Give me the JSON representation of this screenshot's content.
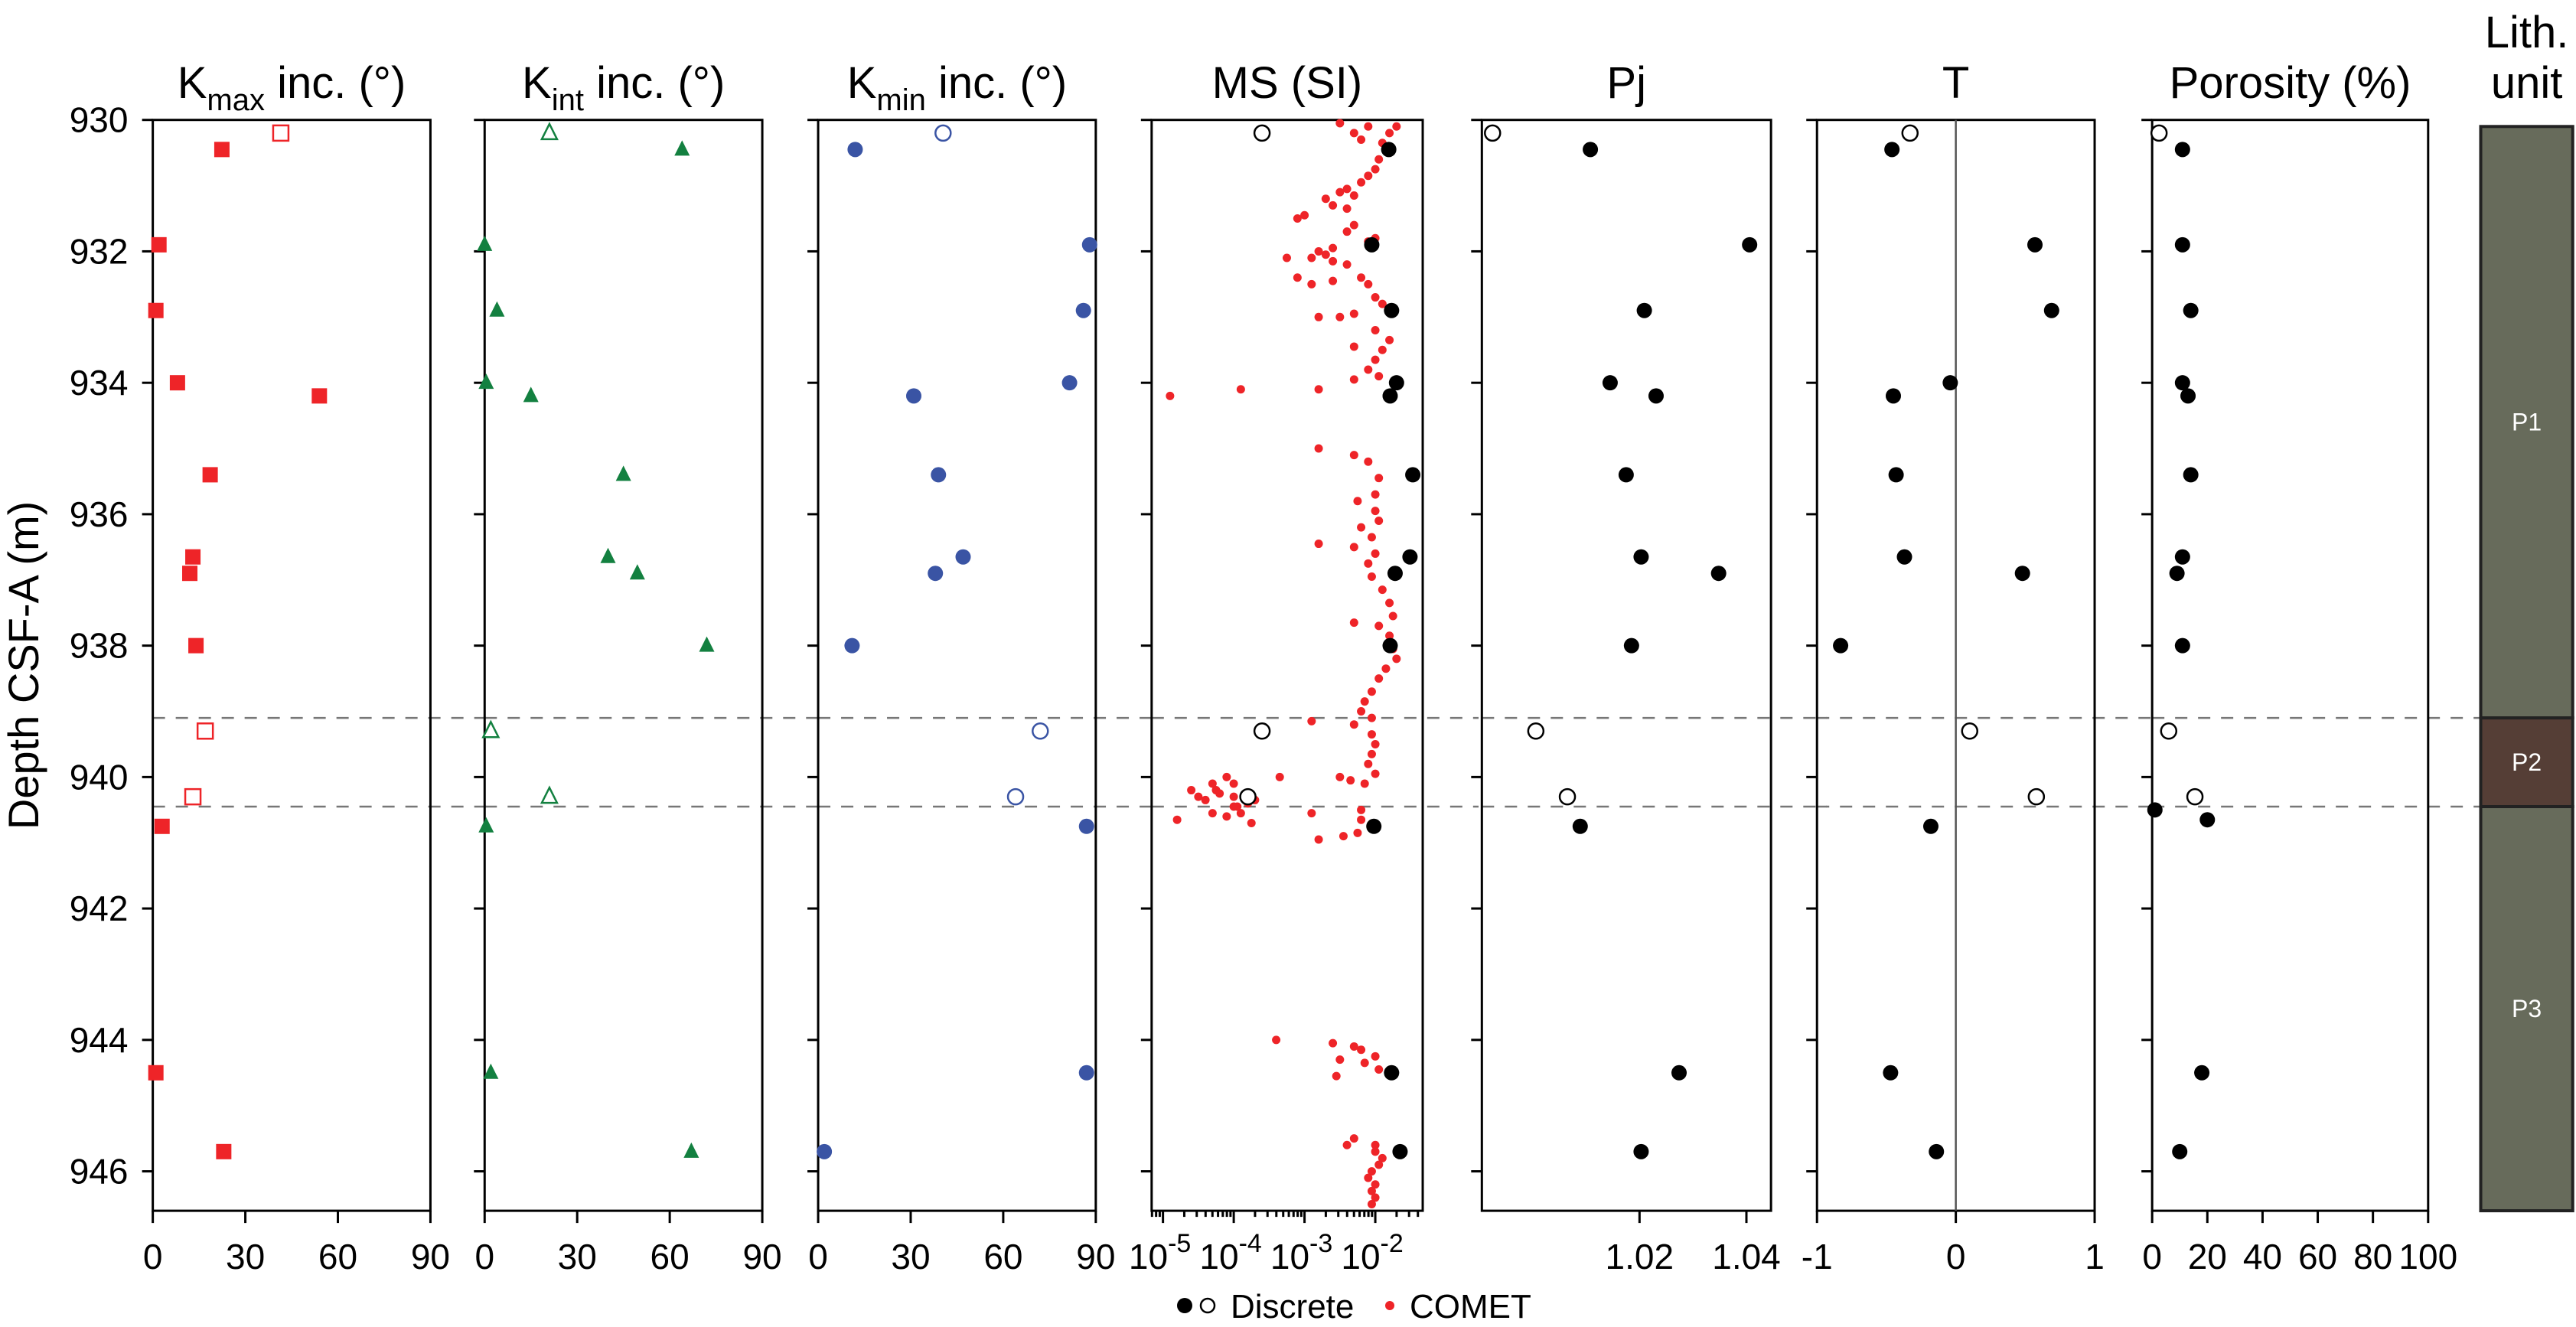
{
  "chart_data": {
    "type": "scatter",
    "ylabel": "Depth CSF-A (m)",
    "ylim": [
      930,
      946.6
    ],
    "yticks": [
      930,
      932,
      934,
      936,
      938,
      940,
      942,
      944,
      946
    ],
    "boundaries": [
      939.1,
      940.45
    ],
    "legend": {
      "discrete": "Discrete",
      "comet": "COMET",
      "placement": "bottom-center"
    },
    "colors": {
      "kmax": "#ee2428",
      "kint": "#138040",
      "kmin": "#3a54a4",
      "discrete": "#000000",
      "comet": "#ee2428",
      "p13": "#676b5b",
      "p2": "#553e36"
    },
    "panels": [
      {
        "id": "kmax",
        "title": "K",
        "title_sub": "max",
        "title_suffix": " inc. (°)",
        "xlim": [
          0,
          90
        ],
        "xticks": [
          0,
          30,
          60,
          90
        ],
        "xtick_labels": [
          "0",
          "30",
          "60",
          "90"
        ],
        "marker": "square",
        "filled": [
          [
            22.4,
            930.45
          ],
          [
            2,
            931.9
          ],
          [
            1,
            932.9
          ],
          [
            8,
            934.0
          ],
          [
            54,
            934.2
          ],
          [
            18.6,
            935.4
          ],
          [
            13,
            936.65
          ],
          [
            12,
            936.9
          ],
          [
            14,
            938.0
          ],
          [
            3,
            940.75
          ],
          [
            1,
            944.5
          ],
          [
            23,
            945.7
          ]
        ],
        "open": [
          [
            41.5,
            930.2
          ],
          [
            17,
            939.3
          ],
          [
            13,
            940.3
          ]
        ]
      },
      {
        "id": "kint",
        "title": "K",
        "title_sub": "int",
        "title_suffix": " inc. (°)",
        "xlim": [
          0,
          90
        ],
        "xticks": [
          0,
          30,
          60,
          90
        ],
        "xtick_labels": [
          "0",
          "30",
          "60",
          "90"
        ],
        "marker": "triangle",
        "filled": [
          [
            64,
            930.45
          ],
          [
            0,
            931.9
          ],
          [
            4,
            932.9
          ],
          [
            0.5,
            934.0
          ],
          [
            15,
            934.2
          ],
          [
            45,
            935.4
          ],
          [
            40,
            936.65
          ],
          [
            49.5,
            936.9
          ],
          [
            72,
            938.0
          ],
          [
            0.5,
            940.75
          ],
          [
            2,
            944.5
          ],
          [
            67,
            945.7
          ]
        ],
        "open": [
          [
            21,
            930.2
          ],
          [
            2,
            939.3
          ],
          [
            21,
            940.3
          ]
        ]
      },
      {
        "id": "kmin",
        "title": "K",
        "title_sub": "min",
        "title_suffix": " inc. (°)",
        "xlim": [
          0,
          90
        ],
        "xticks": [
          0,
          30,
          60,
          90
        ],
        "xtick_labels": [
          "0",
          "30",
          "60",
          "90"
        ],
        "marker": "circle",
        "filled": [
          [
            12,
            930.45
          ],
          [
            88,
            931.9
          ],
          [
            86,
            932.9
          ],
          [
            81.5,
            934.0
          ],
          [
            31,
            934.2
          ],
          [
            39,
            935.4
          ],
          [
            47,
            936.65
          ],
          [
            38,
            936.9
          ],
          [
            11,
            938.0
          ],
          [
            87,
            940.75
          ],
          [
            87,
            944.5
          ],
          [
            2,
            945.7
          ]
        ],
        "open": [
          [
            40.5,
            930.2
          ],
          [
            72,
            939.3
          ],
          [
            64,
            940.3
          ]
        ]
      },
      {
        "id": "ms",
        "title": "MS (SI)",
        "scale": "log",
        "xlim_log10": [
          -5.16,
          -1.33
        ],
        "xticks_log10": [
          -5,
          -4,
          -3,
          -2
        ],
        "xtick_labels": [
          {
            "base": "10",
            "exp": "-5"
          },
          {
            "base": "10",
            "exp": "-4"
          },
          {
            "base": "10",
            "exp": "-3"
          },
          {
            "base": "10",
            "exp": "-2"
          }
        ],
        "marker": "circle",
        "filled_log10": [
          [
            -1.81,
            930.45
          ],
          [
            -2.05,
            931.9
          ],
          [
            -1.77,
            932.9
          ],
          [
            -1.7,
            934.0
          ],
          [
            -1.79,
            934.2
          ],
          [
            -1.47,
            935.4
          ],
          [
            -1.51,
            936.65
          ],
          [
            -1.72,
            936.9
          ],
          [
            -1.79,
            938.0
          ],
          [
            -2.02,
            940.75
          ],
          [
            -1.77,
            944.5
          ],
          [
            -1.65,
            945.7
          ]
        ],
        "open_log10": [
          [
            -3.6,
            930.2
          ],
          [
            -3.6,
            939.3
          ],
          [
            -3.8,
            940.3
          ]
        ],
        "comet_log10": [
          [
            -2.5,
            930.05
          ],
          [
            -2.1,
            930.1
          ],
          [
            -1.7,
            930.1
          ],
          [
            -1.8,
            930.2
          ],
          [
            -2.2,
            930.3
          ],
          [
            -2.3,
            930.2
          ],
          [
            -1.9,
            930.35
          ],
          [
            -1.95,
            930.6
          ],
          [
            -2.0,
            930.75
          ],
          [
            -2.1,
            930.85
          ],
          [
            -2.2,
            930.95
          ],
          [
            -2.4,
            931.05
          ],
          [
            -2.5,
            931.1
          ],
          [
            -2.3,
            931.15
          ],
          [
            -2.7,
            931.2
          ],
          [
            -2.6,
            931.3
          ],
          [
            -2.4,
            931.35
          ],
          [
            -3.0,
            931.45
          ],
          [
            -3.1,
            931.5
          ],
          [
            -2.3,
            931.6
          ],
          [
            -2.4,
            931.7
          ],
          [
            -2.0,
            931.8
          ],
          [
            -2.1,
            931.85
          ],
          [
            -2.8,
            932.0
          ],
          [
            -2.6,
            931.95
          ],
          [
            -2.7,
            932.05
          ],
          [
            -3.25,
            932.1
          ],
          [
            -2.9,
            932.1
          ],
          [
            -2.6,
            932.15
          ],
          [
            -2.4,
            932.2
          ],
          [
            -2.2,
            932.4
          ],
          [
            -2.1,
            932.5
          ],
          [
            -2.6,
            932.45
          ],
          [
            -3.1,
            932.4
          ],
          [
            -2.9,
            932.5
          ],
          [
            -2.0,
            932.7
          ],
          [
            -1.9,
            932.8
          ],
          [
            -2.3,
            932.95
          ],
          [
            -2.8,
            933.0
          ],
          [
            -2.5,
            933.0
          ],
          [
            -2.0,
            933.2
          ],
          [
            -1.8,
            933.35
          ],
          [
            -1.9,
            933.5
          ],
          [
            -2.3,
            933.45
          ],
          [
            -2.0,
            933.65
          ],
          [
            -2.1,
            933.8
          ],
          [
            -1.95,
            933.9
          ],
          [
            -2.3,
            933.95
          ],
          [
            -4.9,
            934.2
          ],
          [
            -3.9,
            934.1
          ],
          [
            -2.8,
            934.1
          ],
          [
            -2.8,
            935.0
          ],
          [
            -2.3,
            935.1
          ],
          [
            -2.1,
            935.2
          ],
          [
            -1.95,
            935.45
          ],
          [
            -2.0,
            935.7
          ],
          [
            -2.25,
            935.8
          ],
          [
            -2.0,
            935.95
          ],
          [
            -1.95,
            936.1
          ],
          [
            -2.2,
            936.2
          ],
          [
            -2.05,
            936.35
          ],
          [
            -2.8,
            936.45
          ],
          [
            -2.3,
            936.5
          ],
          [
            -2.0,
            936.6
          ],
          [
            -2.1,
            936.75
          ],
          [
            -2.05,
            936.95
          ],
          [
            -1.9,
            937.15
          ],
          [
            -1.8,
            937.35
          ],
          [
            -1.75,
            937.55
          ],
          [
            -2.3,
            937.65
          ],
          [
            -1.95,
            937.7
          ],
          [
            -1.8,
            937.85
          ],
          [
            -1.75,
            938.05
          ],
          [
            -1.7,
            938.2
          ],
          [
            -1.85,
            938.35
          ],
          [
            -1.95,
            938.5
          ],
          [
            -2.05,
            938.7
          ],
          [
            -2.15,
            938.85
          ],
          [
            -2.2,
            939.0
          ],
          [
            -2.05,
            939.1
          ],
          [
            -2.9,
            939.15
          ],
          [
            -2.3,
            939.2
          ],
          [
            -2.05,
            939.35
          ],
          [
            -2.0,
            939.5
          ],
          [
            -2.05,
            939.65
          ],
          [
            -2.1,
            939.8
          ],
          [
            -2.0,
            939.95
          ],
          [
            -2.5,
            940.0
          ],
          [
            -2.35,
            940.05
          ],
          [
            -2.15,
            940.1
          ],
          [
            -3.35,
            940.0
          ],
          [
            -4.1,
            940.0
          ],
          [
            -4.3,
            940.1
          ],
          [
            -4.0,
            940.1
          ],
          [
            -4.25,
            940.2
          ],
          [
            -4.6,
            940.2
          ],
          [
            -4.5,
            940.3
          ],
          [
            -4.4,
            940.35
          ],
          [
            -4.2,
            940.25
          ],
          [
            -4.0,
            940.3
          ],
          [
            -3.8,
            940.4
          ],
          [
            -3.7,
            940.35
          ],
          [
            -4.0,
            940.45
          ],
          [
            -4.3,
            940.55
          ],
          [
            -4.1,
            940.6
          ],
          [
            -3.9,
            940.55
          ],
          [
            -4.8,
            940.65
          ],
          [
            -3.75,
            940.7
          ],
          [
            -3.95,
            940.45
          ],
          [
            -2.9,
            940.55
          ],
          [
            -2.2,
            940.5
          ],
          [
            -2.2,
            940.65
          ],
          [
            -2.25,
            940.85
          ],
          [
            -2.8,
            940.95
          ],
          [
            -2.45,
            940.9
          ],
          [
            -3.4,
            944.0
          ],
          [
            -2.6,
            944.05
          ],
          [
            -2.3,
            944.1
          ],
          [
            -2.2,
            944.15
          ],
          [
            -2.5,
            944.3
          ],
          [
            -2.0,
            944.25
          ],
          [
            -2.15,
            944.35
          ],
          [
            -1.95,
            944.45
          ],
          [
            -2.55,
            944.55
          ],
          [
            -2.3,
            945.5
          ],
          [
            -2.4,
            945.6
          ],
          [
            -2.0,
            945.6
          ],
          [
            -2.0,
            945.7
          ],
          [
            -1.9,
            945.8
          ],
          [
            -1.95,
            945.9
          ],
          [
            -2.05,
            946.0
          ],
          [
            -2.1,
            946.1
          ],
          [
            -2.0,
            946.2
          ],
          [
            -2.05,
            946.3
          ],
          [
            -2.0,
            946.4
          ],
          [
            -2.05,
            946.5
          ]
        ]
      },
      {
        "id": "pj",
        "title": "Pj",
        "xlim": [
          0.9905,
          1.0446
        ],
        "xticks": [
          1.02,
          1.04
        ],
        "xtick_labels": [
          "1.02",
          "1.04"
        ],
        "marker": "circle",
        "filled": [
          [
            1.0108,
            930.45
          ],
          [
            1.0406,
            931.9
          ],
          [
            1.0209,
            932.9
          ],
          [
            1.0145,
            934.0
          ],
          [
            1.0231,
            934.2
          ],
          [
            1.0175,
            935.4
          ],
          [
            1.0203,
            936.65
          ],
          [
            1.0348,
            936.9
          ],
          [
            1.0185,
            938.0
          ],
          [
            1.0089,
            940.75
          ],
          [
            1.0274,
            944.5
          ],
          [
            1.0203,
            945.7
          ]
        ],
        "open": [
          [
            0.9925,
            930.2
          ],
          [
            1.0006,
            939.3
          ],
          [
            1.0065,
            940.3
          ]
        ]
      },
      {
        "id": "t",
        "title": "T",
        "xlim": [
          -1,
          1
        ],
        "xticks": [
          -1,
          0,
          1
        ],
        "xtick_labels": [
          "-1",
          "0",
          "1"
        ],
        "zero_line": 0,
        "marker": "circle",
        "filled": [
          [
            -0.46,
            930.45
          ],
          [
            0.57,
            931.9
          ],
          [
            0.69,
            932.9
          ],
          [
            -0.04,
            934.0
          ],
          [
            -0.45,
            934.2
          ],
          [
            -0.43,
            935.4
          ],
          [
            -0.37,
            936.65
          ],
          [
            0.48,
            936.9
          ],
          [
            -0.83,
            938.0
          ],
          [
            -0.18,
            940.75
          ],
          [
            -0.47,
            944.5
          ],
          [
            -0.14,
            945.7
          ]
        ],
        "open": [
          [
            -0.33,
            930.2
          ],
          [
            0.1,
            939.3
          ],
          [
            0.58,
            940.3
          ]
        ]
      },
      {
        "id": "porosity",
        "title": "Porosity (%)",
        "xlim": [
          0,
          100
        ],
        "xticks": [
          0,
          20,
          40,
          60,
          80,
          100
        ],
        "xtick_labels": [
          "0",
          "20",
          "40",
          "60",
          "80",
          "100"
        ],
        "marker": "circle",
        "filled": [
          [
            11,
            930.45
          ],
          [
            11,
            931.9
          ],
          [
            14,
            932.9
          ],
          [
            11,
            934.0
          ],
          [
            13,
            934.2
          ],
          [
            14,
            935.4
          ],
          [
            11,
            936.65
          ],
          [
            9,
            936.9
          ],
          [
            11,
            938.0
          ],
          [
            1,
            940.5
          ],
          [
            20,
            940.65
          ],
          [
            18,
            944.5
          ],
          [
            10,
            945.7
          ]
        ],
        "open": [
          [
            2.5,
            930.2
          ],
          [
            6,
            939.3
          ],
          [
            15.5,
            940.3
          ]
        ]
      }
    ],
    "lithology": {
      "title_line1": "Lith.",
      "title_line2": "unit",
      "units": [
        {
          "label": "P1",
          "top": 930.1,
          "bottom": 939.1,
          "color_key": "p13"
        },
        {
          "label": "P2",
          "top": 939.1,
          "bottom": 940.45,
          "color_key": "p2"
        },
        {
          "label": "P3",
          "top": 940.45,
          "bottom": 946.6,
          "color_key": "p13"
        }
      ]
    }
  }
}
